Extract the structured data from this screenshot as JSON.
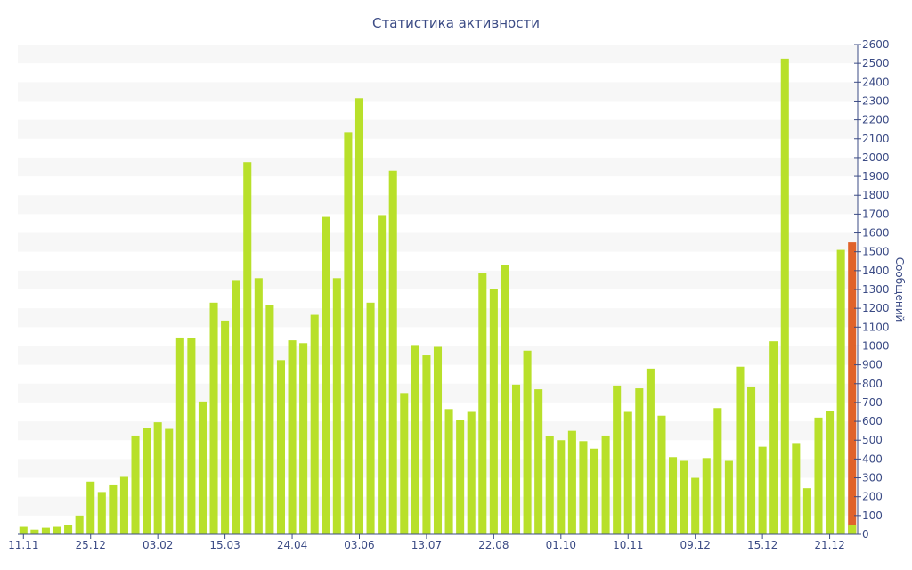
{
  "colors": {
    "bar": "#b8e02a",
    "current_bar": "#e0622a",
    "axis": "#3b4b85",
    "band": "#f7f7f7"
  },
  "chart_data": {
    "type": "bar",
    "title": "Статистика активности",
    "ylabel": "Сообщений",
    "xlabel": "",
    "ylim": [
      0,
      2600
    ],
    "y_ticks": [
      0,
      100,
      200,
      300,
      400,
      500,
      600,
      700,
      800,
      900,
      1000,
      1100,
      1200,
      1300,
      1400,
      1500,
      1600,
      1700,
      1800,
      1900,
      2000,
      2100,
      2200,
      2300,
      2400,
      2500,
      2600
    ],
    "y_axis_side": "right",
    "grid": "alternating horizontal bands",
    "x_tick_labels": [
      {
        "index": 0,
        "label": "11.11"
      },
      {
        "index": 6,
        "label": "25.12"
      },
      {
        "index": 12,
        "label": "03.02"
      },
      {
        "index": 18,
        "label": "15.03"
      },
      {
        "index": 24,
        "label": "24.04"
      },
      {
        "index": 30,
        "label": "03.06"
      },
      {
        "index": 36,
        "label": "13.07"
      },
      {
        "index": 42,
        "label": "22.08"
      },
      {
        "index": 48,
        "label": "01.10"
      },
      {
        "index": 54,
        "label": "10.11"
      },
      {
        "index": 60,
        "label": "09.12"
      },
      {
        "index": 66,
        "label": "15.12"
      },
      {
        "index": 72,
        "label": "21.12"
      }
    ],
    "values": [
      40,
      25,
      35,
      40,
      50,
      100,
      280,
      225,
      265,
      305,
      525,
      565,
      595,
      560,
      1045,
      1040,
      705,
      1230,
      1135,
      1350,
      1975,
      1360,
      1215,
      925,
      1030,
      1015,
      1165,
      1685,
      1360,
      2135,
      2315,
      1230,
      1695,
      1930,
      750,
      1005,
      950,
      995,
      665,
      605,
      650,
      1385,
      1300,
      1430,
      795,
      975,
      770,
      520,
      500,
      550,
      495,
      455,
      525,
      790,
      650,
      775,
      880,
      630,
      410,
      390,
      300,
      405,
      670,
      390,
      890,
      785,
      465,
      1025,
      2525,
      485,
      245,
      620,
      655,
      1510,
      1550
    ],
    "highlight_last": true
  }
}
